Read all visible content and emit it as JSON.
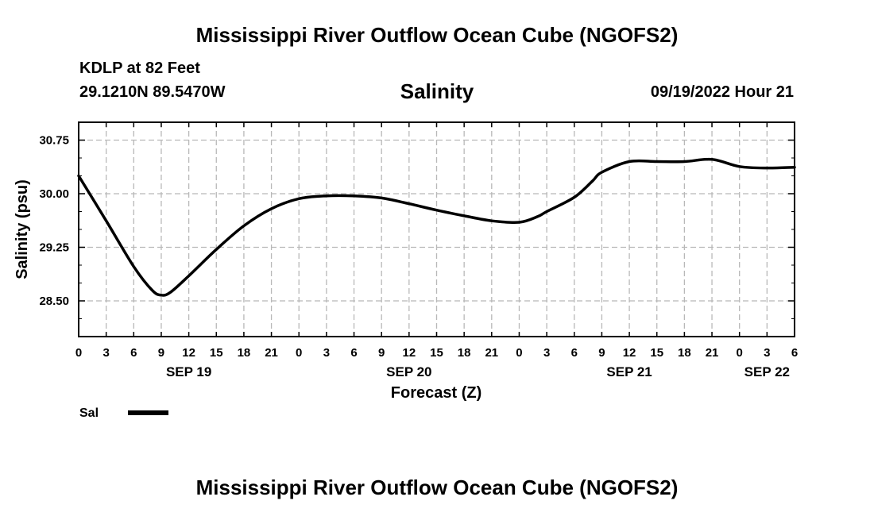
{
  "header": {
    "title": "Mississippi River Outflow Ocean Cube (NGOFS2)",
    "station": "KDLP at 82 Feet",
    "coords": "29.1210N  89.5470W",
    "variable": "Salinity",
    "datetime": "09/19/2022 Hour 21"
  },
  "footer": {
    "title": "Mississippi River Outflow Ocean Cube (NGOFS2)"
  },
  "chart_data": {
    "type": "line",
    "title": "Salinity",
    "xlabel": "Forecast (Z)",
    "ylabel": "Salinity (psu)",
    "xlim": [
      0,
      78
    ],
    "ylim": [
      28.0,
      31.0
    ],
    "grid": true,
    "x_ticks": [
      {
        "x": 0,
        "label": "0"
      },
      {
        "x": 3,
        "label": "3"
      },
      {
        "x": 6,
        "label": "6"
      },
      {
        "x": 9,
        "label": "9"
      },
      {
        "x": 12,
        "label": "12"
      },
      {
        "x": 15,
        "label": "15"
      },
      {
        "x": 18,
        "label": "18"
      },
      {
        "x": 21,
        "label": "21"
      },
      {
        "x": 24,
        "label": "0"
      },
      {
        "x": 27,
        "label": "3"
      },
      {
        "x": 30,
        "label": "6"
      },
      {
        "x": 33,
        "label": "9"
      },
      {
        "x": 36,
        "label": "12"
      },
      {
        "x": 39,
        "label": "15"
      },
      {
        "x": 42,
        "label": "18"
      },
      {
        "x": 45,
        "label": "21"
      },
      {
        "x": 48,
        "label": "0"
      },
      {
        "x": 51,
        "label": "3"
      },
      {
        "x": 54,
        "label": "6"
      },
      {
        "x": 57,
        "label": "9"
      },
      {
        "x": 60,
        "label": "12"
      },
      {
        "x": 63,
        "label": "15"
      },
      {
        "x": 66,
        "label": "18"
      },
      {
        "x": 69,
        "label": "21"
      },
      {
        "x": 72,
        "label": "0"
      },
      {
        "x": 75,
        "label": "3"
      },
      {
        "x": 78,
        "label": "6"
      }
    ],
    "date_labels": [
      {
        "x": 12,
        "label": "SEP 19"
      },
      {
        "x": 36,
        "label": "SEP 20"
      },
      {
        "x": 60,
        "label": "SEP 21"
      },
      {
        "x": 75,
        "label": "SEP 22"
      }
    ],
    "y_ticks": [
      {
        "y": 28.5,
        "label": "28.50"
      },
      {
        "y": 29.25,
        "label": "29.25"
      },
      {
        "y": 30.0,
        "label": "30.00"
      },
      {
        "y": 30.75,
        "label": "30.75"
      }
    ],
    "legend": [
      {
        "name": "Sal",
        "color": "#000000"
      }
    ],
    "series": [
      {
        "name": "Sal",
        "color": "#000000",
        "x": [
          0,
          3,
          6,
          8,
          9,
          10,
          12,
          15,
          18,
          21,
          24,
          27,
          30,
          33,
          36,
          39,
          42,
          45,
          48,
          50,
          51,
          54,
          56,
          57,
          60,
          63,
          66,
          69,
          72,
          75,
          78
        ],
        "y": [
          30.25,
          29.62,
          28.98,
          28.65,
          28.58,
          28.62,
          28.85,
          29.22,
          29.55,
          29.79,
          29.93,
          29.97,
          29.97,
          29.94,
          29.86,
          29.77,
          29.69,
          29.62,
          29.6,
          29.68,
          29.75,
          29.95,
          30.18,
          30.3,
          30.45,
          30.45,
          30.45,
          30.48,
          30.38,
          30.36,
          30.37
        ]
      }
    ]
  }
}
